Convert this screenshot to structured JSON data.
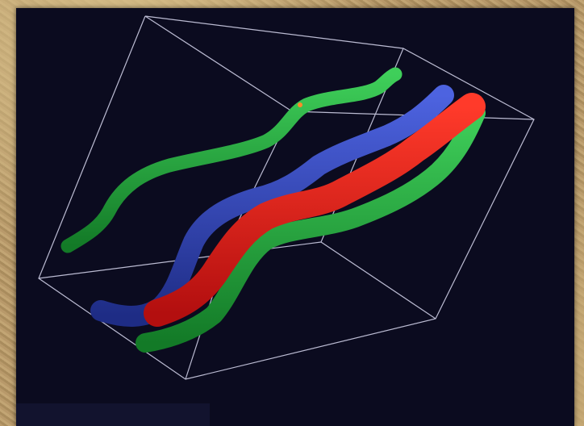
{
  "image": {
    "description_type": "3D rendering",
    "colors": {
      "background": "#0b0b1f",
      "bounding_box": "#cfcfe6",
      "green_strand": "#1fa838",
      "blue_strand": "#2a3fb3",
      "red_strand": "#e01818"
    }
  }
}
